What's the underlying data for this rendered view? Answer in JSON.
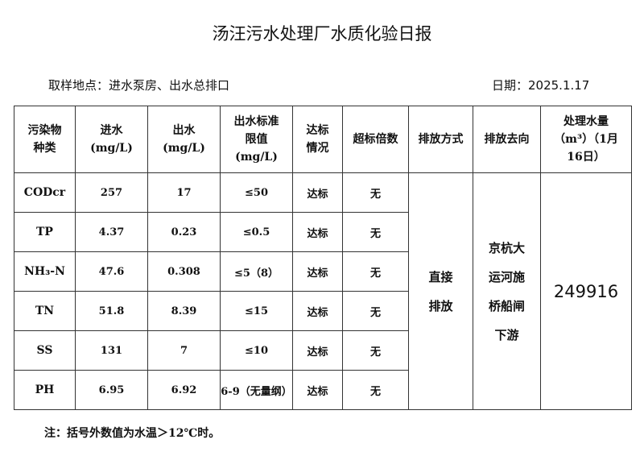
{
  "title": "汤汪污水处理厂水质化验日报",
  "location": "取样地点：进水泵房、出水总排口",
  "date": "日期：2025.1.17",
  "headers": {
    "pollutant": "污染物种类",
    "inflow": "进水(mg/L)",
    "outflow": "出水(mg/L)",
    "limit": "出水标准限值(mg/L)",
    "status": "达标情况",
    "exceed": "超标倍数",
    "method": "排放方式",
    "destination": "排放去向",
    "volume": "处理水量（m³）（1月16日）"
  },
  "rows": [
    {
      "name": "CODcr",
      "in": "257",
      "out": "17",
      "limit": "≤50",
      "status": "达标",
      "exceed": "无"
    },
    {
      "name": "TP",
      "in": "4.37",
      "out": "0.23",
      "limit": "≤0.5",
      "status": "达标",
      "exceed": "无"
    },
    {
      "name": "NH₃-N",
      "in": "47.6",
      "out": "0.308",
      "limit": "≤5（8）",
      "status": "达标",
      "exceed": "无"
    },
    {
      "name": "TN",
      "in": "51.8",
      "out": "8.39",
      "limit": "≤15",
      "status": "达标",
      "exceed": "无"
    },
    {
      "name": "SS",
      "in": "131",
      "out": "7",
      "limit": "≤10",
      "status": "达标",
      "exceed": "无"
    },
    {
      "name": "PH",
      "in": "6.95",
      "out": "6.92",
      "limit": "6-9（无量纲）",
      "status": "达标",
      "exceed": "无"
    }
  ],
  "method": "直接排放",
  "destination": "京杭大运河施桥船闸下游",
  "volume": "249916",
  "note": "注：括号外数值为水温＞12℃时。"
}
